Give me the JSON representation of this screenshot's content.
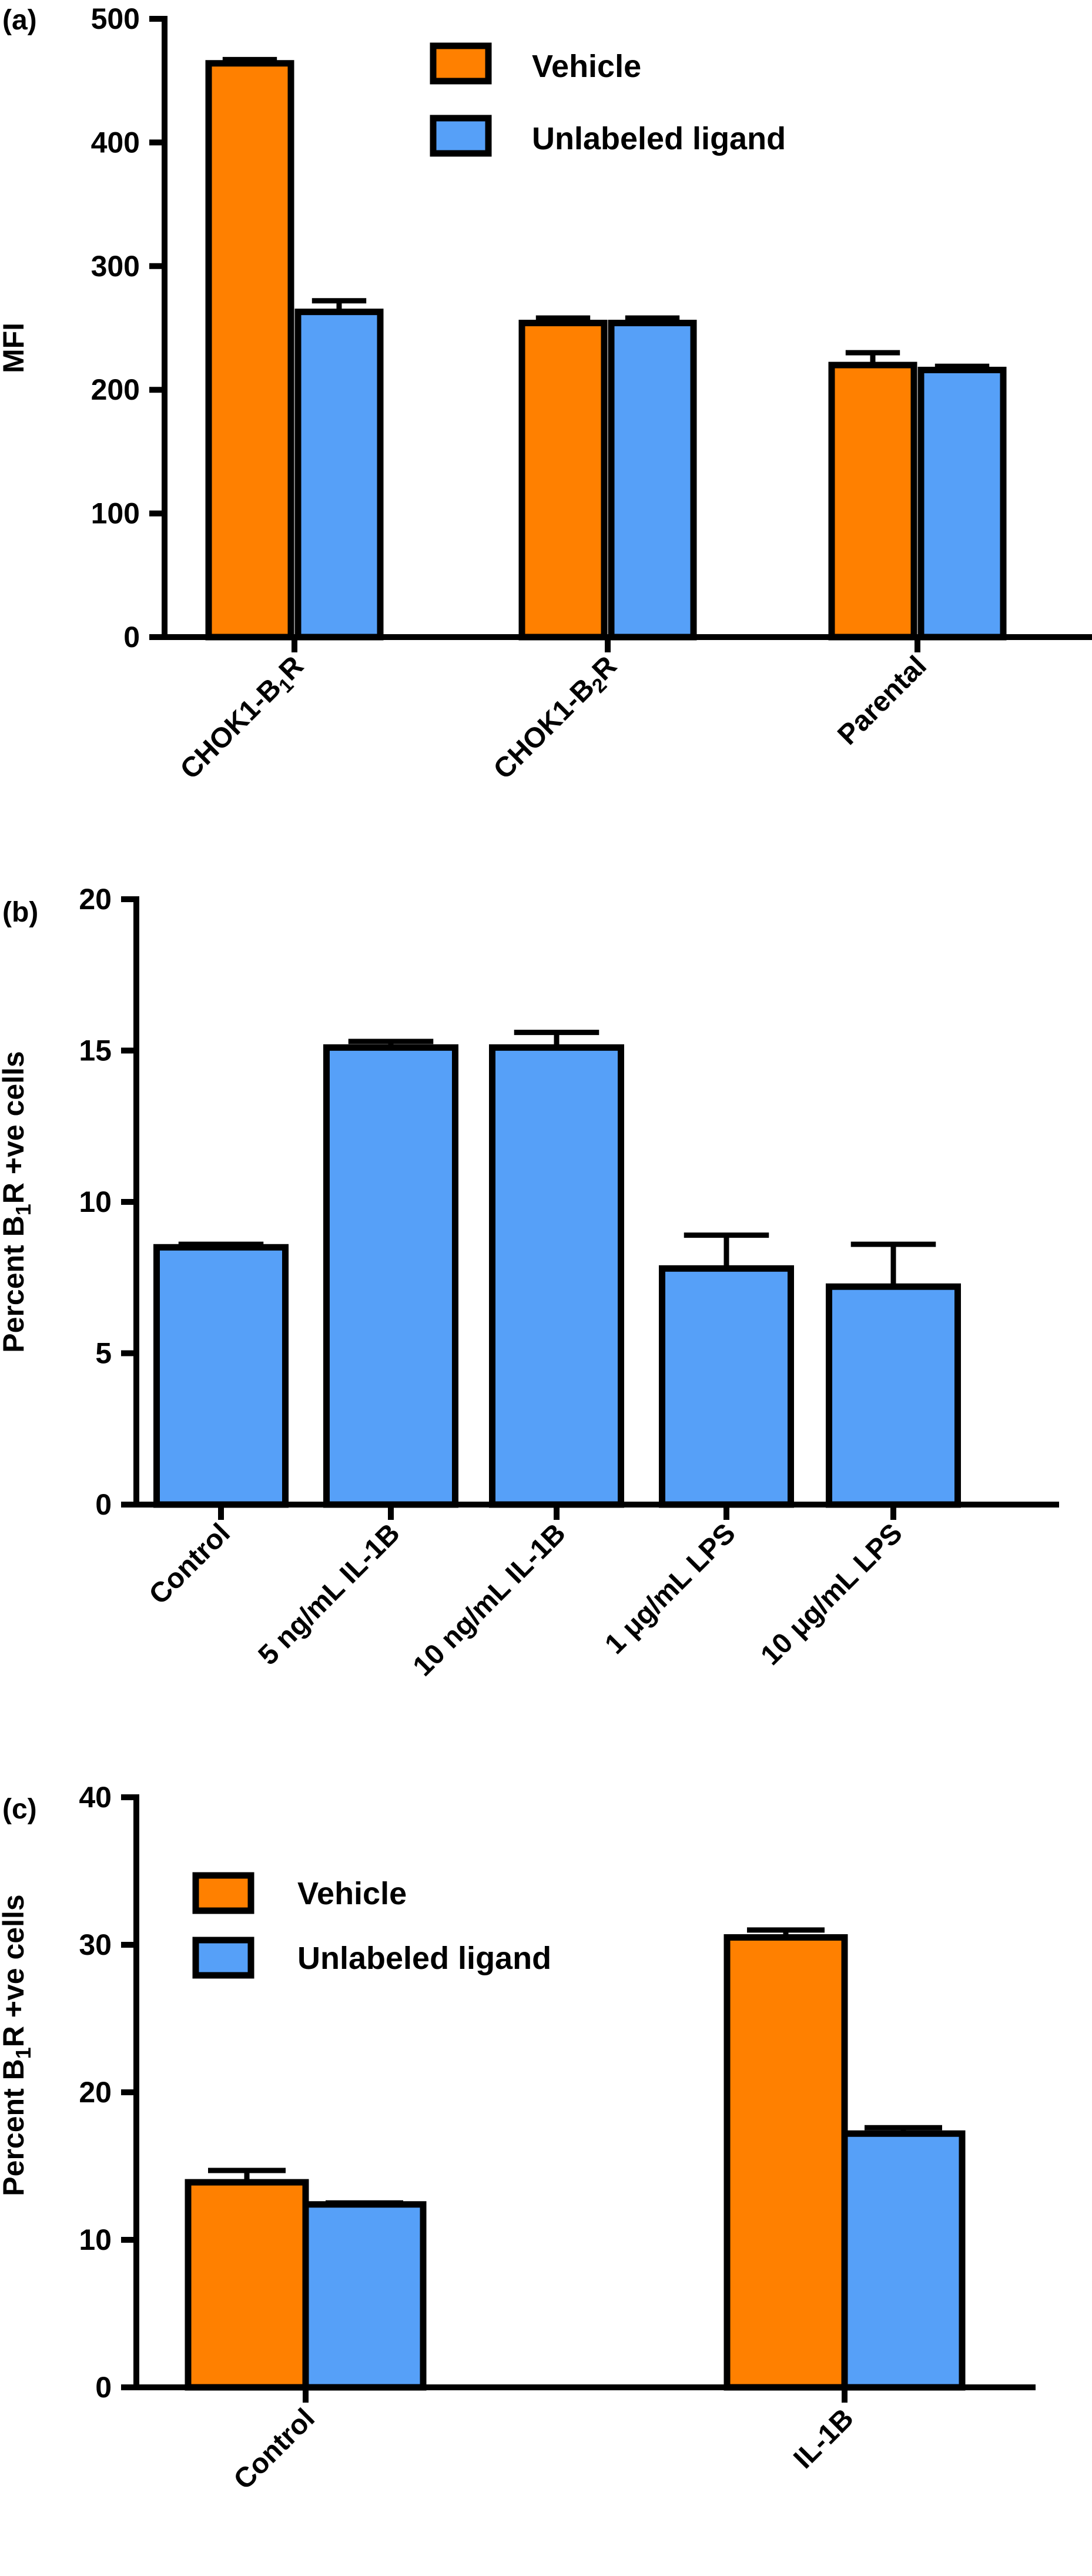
{
  "colors": {
    "vehicle": "#FF8000",
    "ligand": "#56A0F8",
    "axis": "#000000"
  },
  "chart_data": [
    {
      "panel": "(a)",
      "type": "bar",
      "ylabel": "MFI",
      "ylim": [
        0,
        500
      ],
      "yticks": [
        "0",
        "100",
        "200",
        "300",
        "400",
        "500"
      ],
      "categories": [
        "CHOK1-B1R",
        "CHOK1-B2R",
        "Parental"
      ],
      "legend": {
        "placement": "top-center"
      },
      "series": [
        {
          "name": "Vehicle",
          "color": "#FF8000",
          "values": [
            464,
            254,
            220
          ],
          "errors": [
            3,
            4,
            10
          ]
        },
        {
          "name": "Unlabeled ligand",
          "color": "#56A0F8",
          "values": [
            263,
            254,
            216
          ],
          "errors": [
            9,
            4,
            3
          ]
        }
      ]
    },
    {
      "panel": "(b)",
      "type": "bar",
      "ylabel": "Percent B1R +ve cells",
      "ylim": [
        0,
        20
      ],
      "yticks": [
        "0",
        "5",
        "10",
        "15",
        "20"
      ],
      "categories": [
        "Control",
        "5 ng/mL IL-1B",
        "10 ng/mL IL-1B",
        "1 μg/mL LPS",
        "10 μg/mL LPS"
      ],
      "series": [
        {
          "color": "#56A0F8",
          "values": [
            8.5,
            15.1,
            15.1,
            7.8,
            7.2
          ],
          "errors": [
            0.1,
            0.2,
            0.5,
            1.1,
            1.4
          ]
        }
      ]
    },
    {
      "panel": "(c)",
      "type": "bar",
      "ylabel": "Percent B1R +ve cells",
      "ylim": [
        0,
        40
      ],
      "yticks": [
        "0",
        "10",
        "20",
        "30",
        "40"
      ],
      "categories": [
        "Control",
        "IL-1B"
      ],
      "legend": {
        "placement": "top-left"
      },
      "series": [
        {
          "name": "Vehicle",
          "color": "#FF8000",
          "values": [
            13.9,
            30.5
          ],
          "errors": [
            0.8,
            0.5
          ]
        },
        {
          "name": "Unlabeled ligand",
          "color": "#56A0F8",
          "values": [
            12.4,
            17.2
          ],
          "errors": [
            0.1,
            0.4
          ]
        }
      ]
    }
  ]
}
